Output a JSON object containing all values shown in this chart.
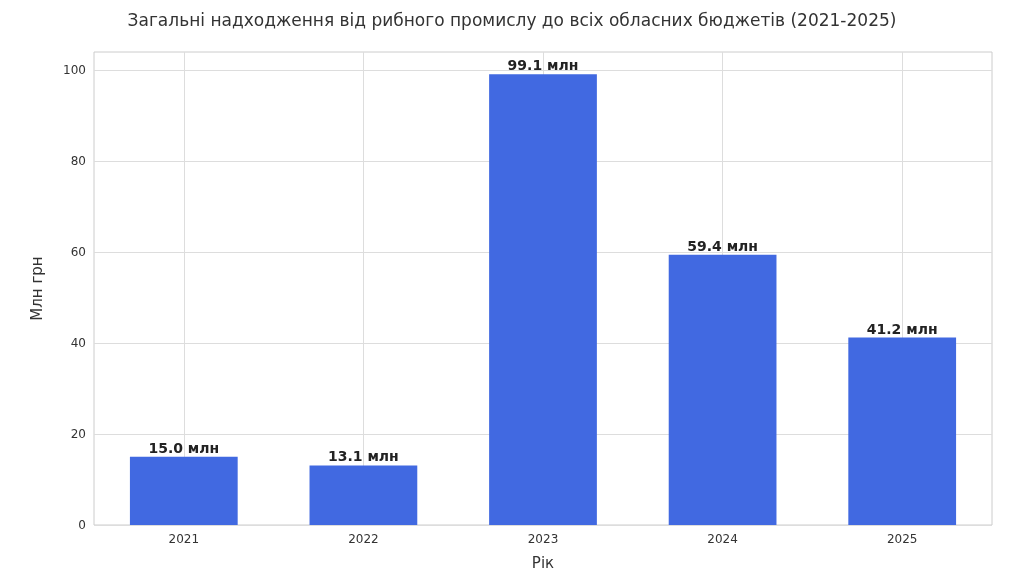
{
  "chart_data": {
    "type": "bar",
    "title": "Загальні надходження від рибного промислу до всіх обласних бюджетів (2021-2025)",
    "xlabel": "Рік",
    "ylabel": "Млн грн",
    "categories": [
      "2021",
      "2022",
      "2023",
      "2024",
      "2025"
    ],
    "values": [
      15.0,
      13.1,
      99.1,
      59.4,
      41.2
    ],
    "value_labels": [
      "15.0 млн",
      "13.1 млн",
      "99.1 млн",
      "59.4 млн",
      "41.2 млн"
    ],
    "color": "#4169e1",
    "ylim": [
      0,
      104
    ],
    "yticks": [
      0,
      20,
      40,
      60,
      80,
      100
    ],
    "grid": true
  }
}
